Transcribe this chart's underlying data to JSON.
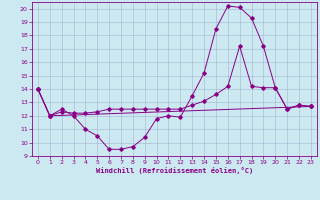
{
  "xlabel": "Windchill (Refroidissement éolien,°C)",
  "xlim": [
    -0.5,
    23.5
  ],
  "ylim": [
    9,
    20.5
  ],
  "yticks": [
    9,
    10,
    11,
    12,
    13,
    14,
    15,
    16,
    17,
    18,
    19,
    20
  ],
  "xticks": [
    0,
    1,
    2,
    3,
    4,
    5,
    6,
    7,
    8,
    9,
    10,
    11,
    12,
    13,
    14,
    15,
    16,
    17,
    18,
    19,
    20,
    21,
    22,
    23
  ],
  "bg_color": "#cce8f0",
  "line_color": "#880088",
  "grid_color": "#99aacc",
  "lines": [
    {
      "x": [
        0,
        1,
        2,
        3,
        4,
        5,
        6,
        7,
        8,
        9,
        10,
        11,
        12,
        13,
        14,
        15,
        16,
        17,
        18,
        19,
        20,
        21,
        22,
        23
      ],
      "y": [
        14,
        12,
        12.5,
        12,
        11,
        10.5,
        9.5,
        9.5,
        9.7,
        10.4,
        11.8,
        12,
        11.9,
        13.5,
        15.2,
        18.5,
        20.2,
        20.1,
        19.3,
        17.2,
        14.1,
        12.5,
        12.8,
        12.7
      ]
    },
    {
      "x": [
        0,
        1,
        23
      ],
      "y": [
        14,
        12,
        12.7
      ]
    },
    {
      "x": [
        0,
        1,
        2,
        3,
        4,
        5,
        6,
        7,
        8,
        9,
        10,
        11,
        12,
        13,
        14,
        15,
        16,
        17,
        18,
        19,
        20,
        21,
        22,
        23
      ],
      "y": [
        14,
        12,
        12.3,
        12.2,
        12.2,
        12.3,
        12.5,
        12.5,
        12.5,
        12.5,
        12.5,
        12.5,
        12.5,
        12.8,
        13.1,
        13.6,
        14.2,
        17.2,
        14.2,
        14.1,
        14.1,
        12.5,
        12.8,
        12.7
      ]
    }
  ]
}
